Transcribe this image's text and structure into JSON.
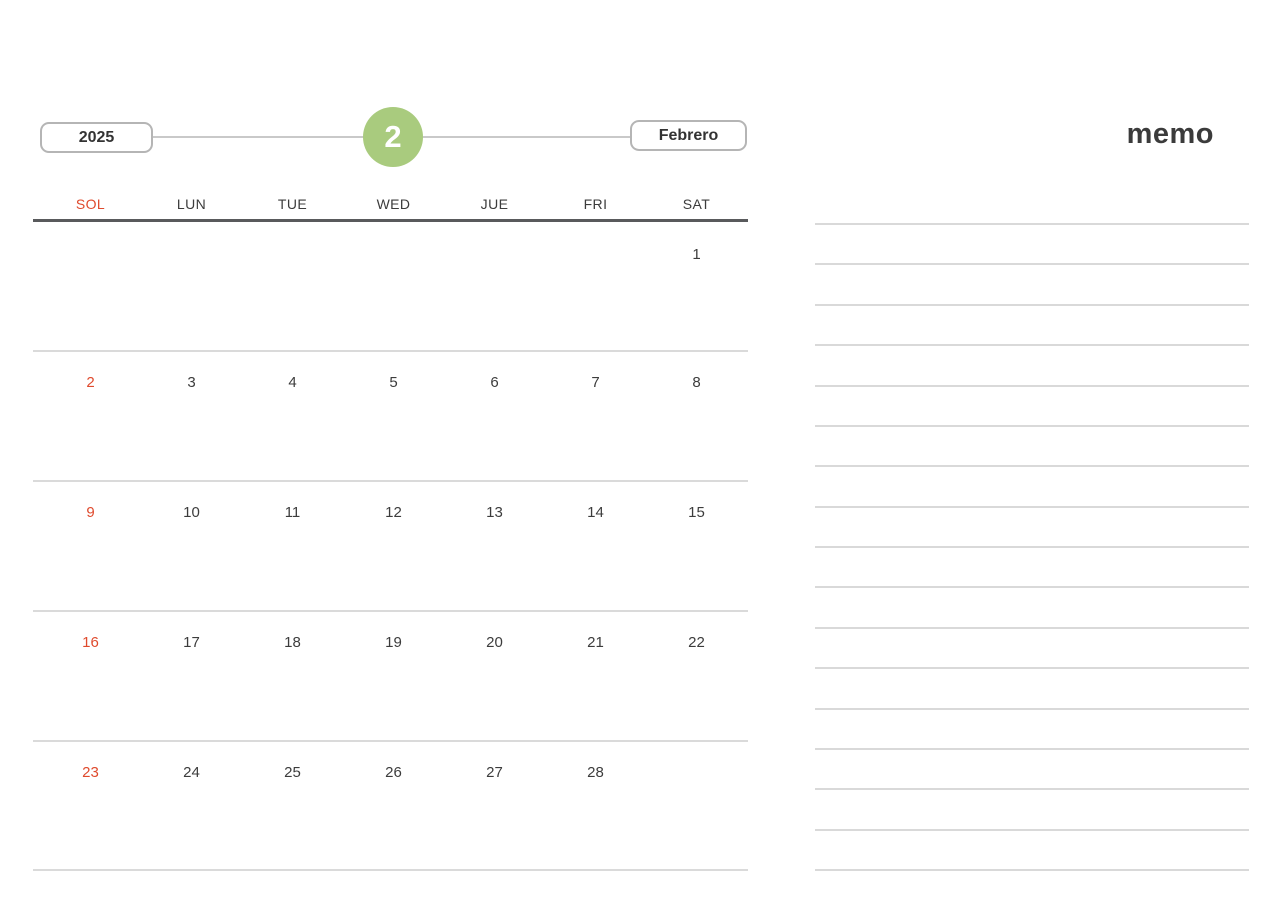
{
  "header": {
    "year_label": "2025",
    "month_number": "2",
    "month_label": "Febrero"
  },
  "memo": {
    "title": "memo",
    "line_count": 17
  },
  "calendar": {
    "weekday_headers": [
      "SOL",
      "LUN",
      "TUE",
      "WED",
      "JUE",
      "FRI",
      "SAT"
    ],
    "sunday_column_index": 0,
    "weeks": [
      [
        "",
        "",
        "",
        "",
        "",
        "",
        "1"
      ],
      [
        "2",
        "3",
        "4",
        "5",
        "6",
        "7",
        "8"
      ],
      [
        "9",
        "10",
        "11",
        "12",
        "13",
        "14",
        "15"
      ],
      [
        "16",
        "17",
        "18",
        "19",
        "20",
        "21",
        "22"
      ],
      [
        "23",
        "24",
        "25",
        "26",
        "27",
        "28",
        ""
      ]
    ]
  },
  "colors": {
    "sunday_red": "#df4a2d",
    "accent_green": "#a9cb7e",
    "button_border": "#b5b5b5",
    "connector_line": "#c9c9c9"
  }
}
